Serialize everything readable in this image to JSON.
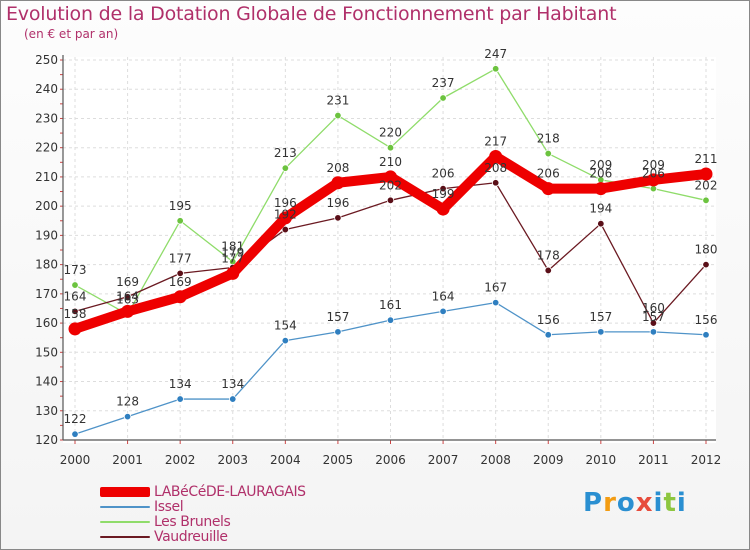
{
  "title": "Evolution de la Dotation Globale de Fonctionnement par Habitant",
  "subtitle": "(en € et par an)",
  "logo": {
    "text": "Proxiti",
    "colors": [
      "#2a8fd1",
      "#f39c12",
      "#2a8fd1",
      "#e74c3c",
      "#2a8fd1",
      "#8dc63f",
      "#2a8fd1"
    ]
  },
  "chart_data": {
    "type": "line",
    "title": "Evolution de la Dotation Globale de Fonctionnement par Habitant",
    "subtitle": "(en € et par an)",
    "xlabel": "",
    "ylabel": "",
    "ylim": [
      120,
      250
    ],
    "yticks": [
      120,
      130,
      140,
      150,
      160,
      170,
      180,
      190,
      200,
      210,
      220,
      230,
      240,
      250
    ],
    "categories": [
      "2000",
      "2001",
      "2002",
      "2003",
      "2004",
      "2005",
      "2006",
      "2007",
      "2008",
      "2009",
      "2010",
      "2011",
      "2012"
    ],
    "grid": true,
    "legend_position": "bottom-left",
    "series": [
      {
        "name": "Issel",
        "color": "#4f93c8",
        "marker": "#2f7fc0",
        "values": [
          122,
          128,
          134,
          134,
          154,
          157,
          161,
          164,
          167,
          156,
          157,
          157,
          156
        ],
        "labels": [
          "122",
          "128",
          "134",
          "134",
          "154",
          "157",
          "161",
          "164",
          "167",
          "156",
          "157",
          "157",
          "156"
        ]
      },
      {
        "name": "Les Brunels",
        "color": "#8fdc6a",
        "marker": "#6cc33f",
        "values": [
          173,
          163,
          195,
          181,
          213,
          231,
          220,
          237,
          247,
          218,
          209,
          206,
          202
        ],
        "labels": [
          "173",
          "163",
          "195",
          "181",
          "213",
          "231",
          "220",
          "237",
          "247",
          "218",
          "209",
          "206",
          "202"
        ]
      },
      {
        "name": "Vaudreuille",
        "color": "#6b1a22",
        "marker": "#5a0f18",
        "values": [
          164,
          169,
          177,
          179,
          192,
          196,
          202,
          206,
          208,
          178,
          194,
          160,
          180
        ],
        "labels": [
          "164",
          "169",
          "177",
          "179",
          "192",
          "196",
          "202",
          "206",
          "208",
          "178",
          "194",
          "160",
          "180"
        ]
      },
      {
        "name": "LABéCéDE-LAURAGAIS",
        "color": "#ee0000",
        "marker": "#ee0000",
        "values": [
          158,
          164,
          169,
          177,
          196,
          208,
          210,
          199,
          217,
          206,
          206,
          209,
          211
        ],
        "labels": [
          "158",
          "164",
          "169",
          "177",
          "196",
          "208",
          "210",
          "199",
          "217",
          "206",
          "206",
          "209",
          "211"
        ]
      }
    ]
  },
  "legend": [
    {
      "name": "LABéCéDE-LAURAGAIS",
      "color": "#ee0000",
      "weight": 10
    },
    {
      "name": "Issel",
      "color": "#4f93c8",
      "weight": 2
    },
    {
      "name": "Les Brunels",
      "color": "#8fdc6a",
      "weight": 2
    },
    {
      "name": "Vaudreuille",
      "color": "#6b1a22",
      "weight": 2
    }
  ]
}
